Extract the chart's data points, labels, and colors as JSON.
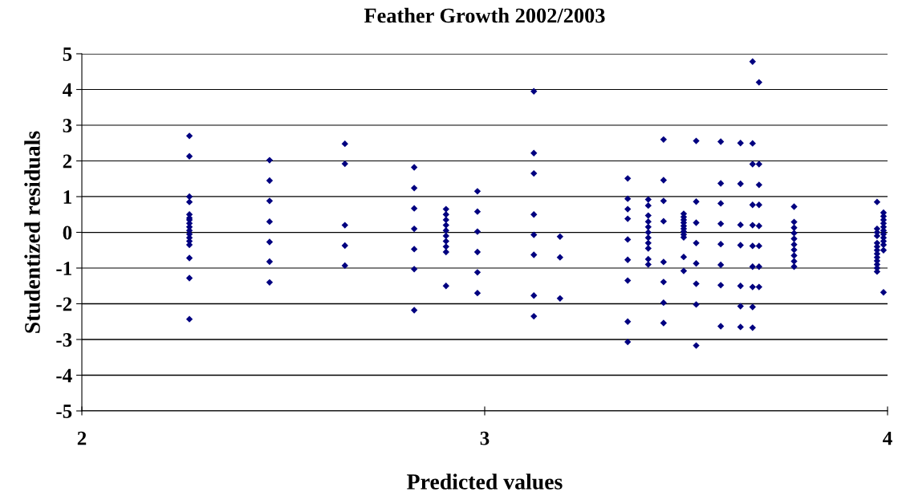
{
  "chart_data": {
    "type": "scatter",
    "title": "Feather Growth 2002/2003",
    "xlabel": "Predicted values",
    "ylabel": "Studentized residuals",
    "xlim": [
      2,
      4
    ],
    "xticks": [
      2,
      3,
      4
    ],
    "ylim": [
      -5,
      5
    ],
    "yticks": [
      -5,
      -4,
      -3,
      -2,
      -1,
      0,
      1,
      2,
      3,
      4,
      5
    ],
    "grid": "y",
    "marker": "diamond",
    "series": [
      {
        "color": "#000080",
        "x": [
          2.267,
          2.267,
          2.267,
          2.267,
          2.267,
          2.267,
          2.267,
          2.267,
          2.267,
          2.267,
          2.267,
          2.267,
          2.267,
          2.267,
          2.267,
          2.267,
          2.267,
          2.466,
          2.466,
          2.466,
          2.466,
          2.466,
          2.466,
          2.466,
          2.653,
          2.653,
          2.653,
          2.653,
          2.653,
          2.825,
          2.825,
          2.825,
          2.825,
          2.825,
          2.825,
          2.825,
          2.904,
          2.904,
          2.904,
          2.904,
          2.904,
          2.904,
          2.904,
          2.904,
          2.904,
          2.904,
          2.982,
          2.982,
          2.982,
          2.982,
          2.982,
          2.982,
          3.122,
          3.122,
          3.122,
          3.122,
          3.122,
          3.122,
          3.122,
          3.122,
          3.187,
          3.187,
          3.187,
          3.355,
          3.355,
          3.355,
          3.355,
          3.355,
          3.355,
          3.355,
          3.355,
          3.355,
          3.406,
          3.406,
          3.406,
          3.406,
          3.406,
          3.406,
          3.406,
          3.406,
          3.406,
          3.406,
          3.406,
          3.444,
          3.444,
          3.444,
          3.444,
          3.444,
          3.444,
          3.444,
          3.444,
          3.494,
          3.494,
          3.494,
          3.494,
          3.494,
          3.494,
          3.494,
          3.494,
          3.494,
          3.494,
          3.494,
          3.525,
          3.525,
          3.525,
          3.525,
          3.525,
          3.525,
          3.525,
          3.525,
          3.586,
          3.586,
          3.586,
          3.586,
          3.586,
          3.586,
          3.586,
          3.586,
          3.635,
          3.635,
          3.635,
          3.635,
          3.635,
          3.635,
          3.635,
          3.665,
          3.665,
          3.665,
          3.665,
          3.665,
          3.665,
          3.665,
          3.665,
          3.665,
          3.665,
          3.681,
          3.681,
          3.681,
          3.681,
          3.681,
          3.681,
          3.681,
          3.681,
          3.768,
          3.768,
          3.768,
          3.768,
          3.768,
          3.768,
          3.768,
          3.768,
          3.768,
          3.768,
          3.974,
          3.974,
          3.974,
          3.974,
          3.974,
          3.974,
          3.974,
          3.974,
          3.974,
          3.974,
          3.974,
          3.974,
          3.974,
          3.99,
          3.99,
          3.99,
          3.99,
          3.99,
          3.99,
          3.99,
          3.99,
          3.99,
          3.99,
          3.99,
          3.99
        ],
        "values": [
          2.7,
          2.13,
          1.0,
          0.85,
          0.5,
          0.4,
          0.35,
          0.25,
          0.15,
          0.05,
          -0.05,
          -0.15,
          -0.25,
          -0.35,
          -0.72,
          -1.28,
          -2.43,
          2.02,
          1.45,
          0.88,
          0.3,
          -0.27,
          -0.82,
          -1.4,
          2.48,
          1.92,
          0.2,
          -0.37,
          -0.93,
          1.82,
          1.24,
          0.67,
          0.1,
          -0.47,
          -1.03,
          -2.18,
          0.65,
          0.5,
          0.35,
          0.2,
          0.05,
          -0.1,
          -0.25,
          -0.4,
          -0.55,
          -1.5,
          1.15,
          0.58,
          0.02,
          -0.55,
          -1.12,
          -1.7,
          3.95,
          2.22,
          1.65,
          0.5,
          -0.07,
          -0.63,
          -1.77,
          -2.35,
          -0.12,
          -0.7,
          -1.85,
          1.51,
          0.94,
          0.65,
          0.38,
          -0.2,
          -0.77,
          -1.35,
          -2.5,
          -3.07,
          0.92,
          0.75,
          0.47,
          0.3,
          0.15,
          0.0,
          -0.15,
          -0.3,
          -0.45,
          -0.75,
          -0.9,
          2.6,
          1.46,
          0.88,
          0.31,
          -0.83,
          -1.39,
          -1.97,
          -2.54,
          0.52,
          0.43,
          0.35,
          0.27,
          0.18,
          0.1,
          0.02,
          -0.06,
          -0.14,
          -0.69,
          -1.08,
          2.56,
          0.86,
          0.27,
          -0.3,
          -0.87,
          -1.44,
          -2.02,
          -3.17,
          2.54,
          1.37,
          0.81,
          0.24,
          -0.33,
          -0.91,
          -1.48,
          -2.63,
          2.5,
          1.36,
          0.21,
          -0.36,
          -1.5,
          -2.07,
          -2.65,
          4.78,
          2.49,
          1.91,
          0.77,
          0.2,
          -0.38,
          -0.96,
          -1.53,
          -2.09,
          -2.67,
          4.2,
          1.91,
          1.33,
          0.77,
          0.18,
          -0.38,
          -0.96,
          -1.53,
          0.72,
          0.29,
          0.13,
          -0.02,
          -0.18,
          -0.34,
          -0.49,
          -0.65,
          -0.81,
          -0.96,
          0.85,
          0.1,
          0.0,
          -0.1,
          -0.3,
          -0.4,
          -0.5,
          -0.6,
          -0.7,
          -0.8,
          -0.9,
          -1.0,
          -1.1,
          0.55,
          0.45,
          0.35,
          0.25,
          0.15,
          0.05,
          -0.05,
          -0.15,
          -0.25,
          -0.35,
          -0.5,
          -1.68
        ]
      }
    ]
  }
}
